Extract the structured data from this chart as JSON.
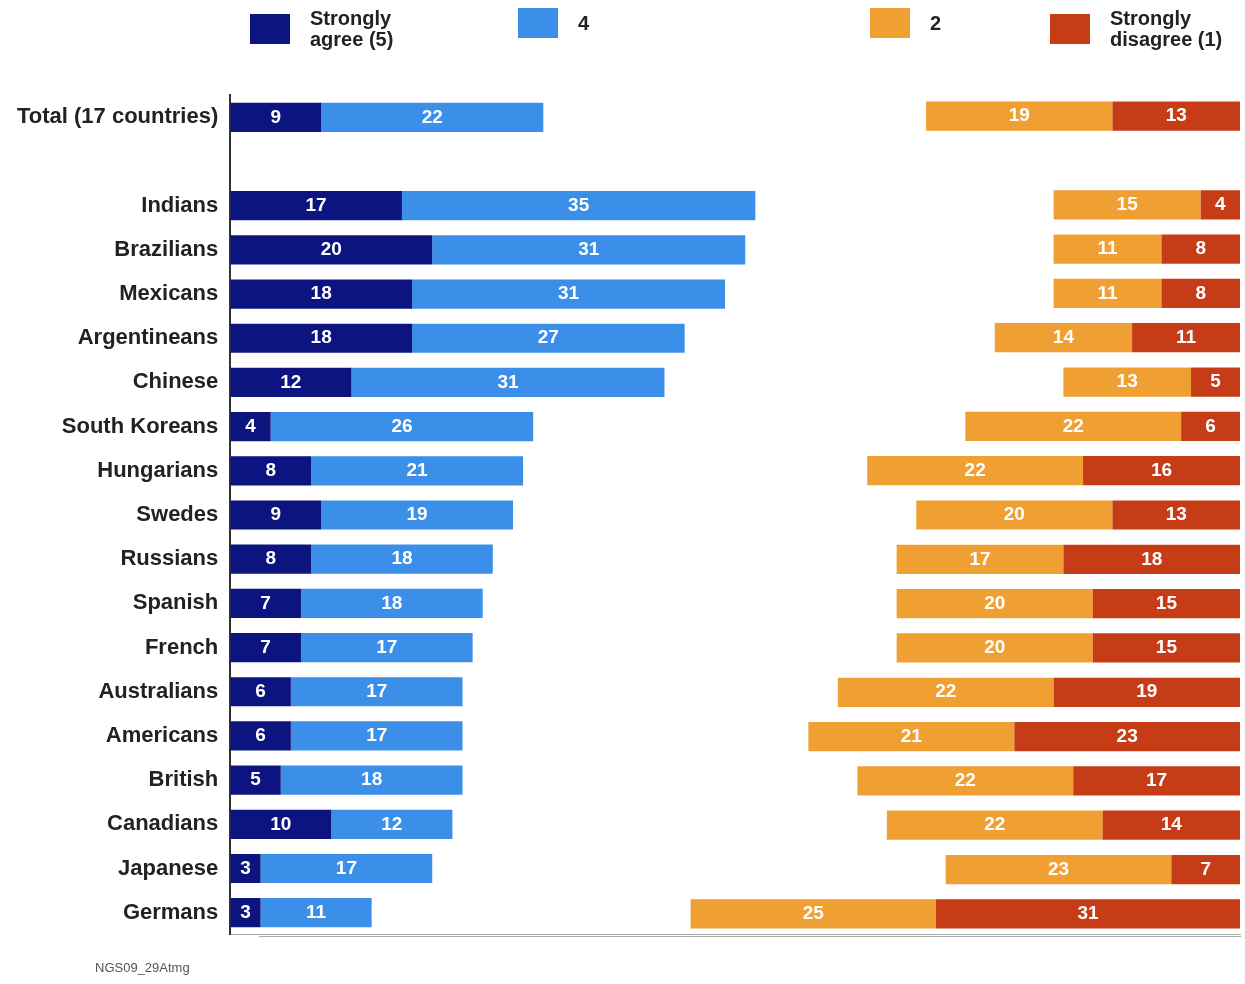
{
  "chart_data": [
    {
      "type": "bar",
      "orientation": "horizontal",
      "stacked": true,
      "data_labels": true,
      "legend": "top",
      "tick_labels": "y",
      "xlim": [
        0,
        100
      ],
      "categories": [
        "Total (17 countries)",
        null,
        "Indians",
        "Brazilians",
        "Mexicans",
        "Argentineans",
        "Chinese",
        "South Koreans",
        "Hungarians",
        "Swedes",
        "Russians",
        "Spanish",
        "French",
        "Australians",
        "Americans",
        "British",
        "Canadians",
        "Japanese",
        "Germans"
      ],
      "series": [
        {
          "name": "Strongly agree (5)",
          "color": "#0c1480",
          "values": [
            9,
            null,
            17,
            20,
            18,
            18,
            12,
            4,
            8,
            9,
            8,
            7,
            7,
            6,
            6,
            5,
            10,
            3,
            3
          ]
        },
        {
          "name": "4",
          "color": "#3b8fe8",
          "values": [
            22,
            null,
            35,
            31,
            31,
            27,
            31,
            26,
            21,
            19,
            18,
            18,
            17,
            17,
            17,
            18,
            12,
            17,
            11
          ]
        }
      ],
      "annotations": [
        "NGS09_29Atmg"
      ]
    },
    {
      "type": "bar",
      "orientation": "horizontal",
      "stacked": true,
      "data_labels": true,
      "legend": "top",
      "tick_labels": false,
      "xlim": [
        100,
        0
      ],
      "categories": [
        null,
        null,
        null,
        null,
        null,
        null,
        null,
        null,
        null,
        null,
        null,
        null,
        null,
        null,
        null,
        null,
        null,
        null,
        null
      ],
      "series": [
        {
          "name": "Strongly disagree (1)",
          "color": "#c63c17",
          "values": [
            13,
            null,
            4,
            8,
            8,
            11,
            5,
            6,
            16,
            13,
            18,
            15,
            15,
            19,
            23,
            17,
            14,
            7,
            31
          ]
        },
        {
          "name": "2",
          "color": "#f0a032",
          "values": [
            19,
            null,
            15,
            11,
            11,
            14,
            13,
            22,
            22,
            20,
            17,
            20,
            20,
            22,
            21,
            22,
            22,
            23,
            25
          ]
        }
      ]
    }
  ]
}
